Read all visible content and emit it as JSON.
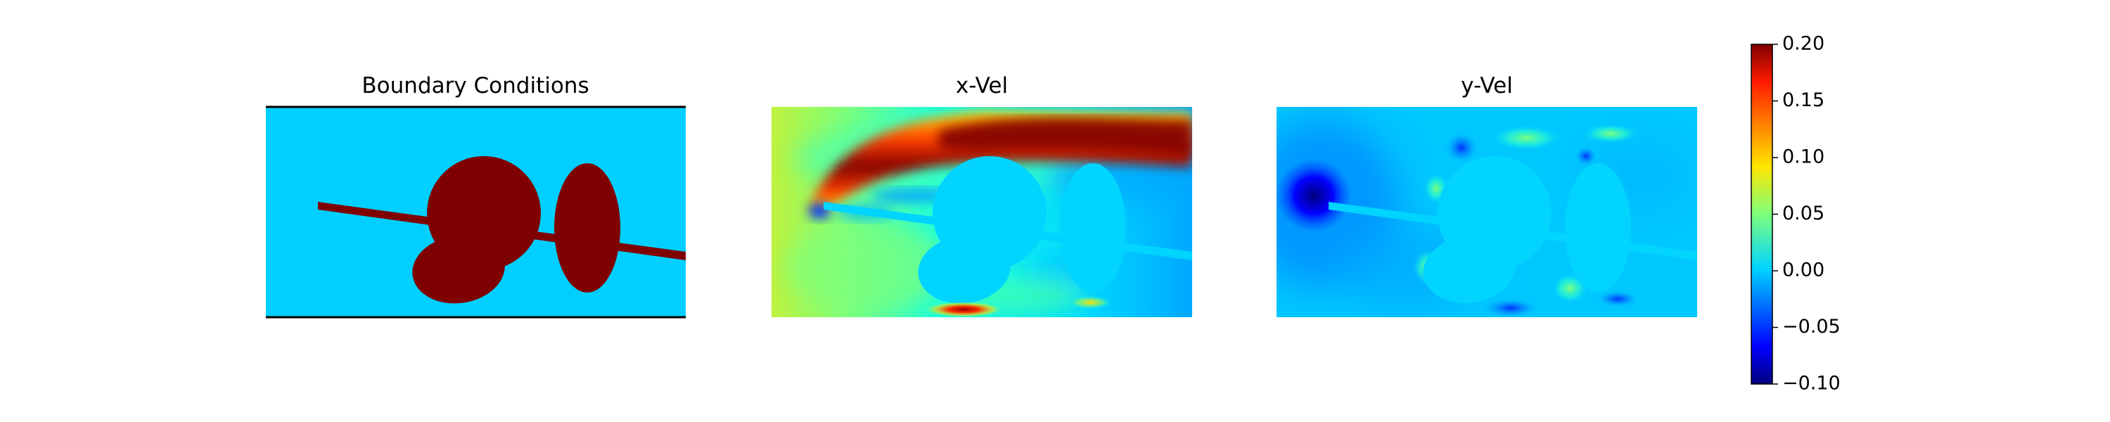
{
  "chart_data": [
    {
      "type": "heatmap",
      "title": "Boundary Conditions",
      "axes": "off",
      "colors": {
        "background": "#00cfff",
        "obstacle": "#7f0000",
        "wall": "#000000"
      }
    },
    {
      "type": "heatmap",
      "title": "x-Vel",
      "axes": "off",
      "colormap": "jet",
      "value_range": [
        -0.1,
        0.2
      ]
    },
    {
      "type": "heatmap",
      "title": "y-Vel",
      "axes": "off",
      "colormap": "jet",
      "value_range": [
        -0.1,
        0.2
      ]
    }
  ],
  "colorbar": {
    "colormap": "jet",
    "orientation": "vertical",
    "min": -0.1,
    "max": 0.2,
    "ticks": [
      {
        "value": 0.2,
        "label": "0.20"
      },
      {
        "value": 0.15,
        "label": "0.15"
      },
      {
        "value": 0.1,
        "label": "0.10"
      },
      {
        "value": 0.05,
        "label": "0.05"
      },
      {
        "value": 0.0,
        "label": "0.00"
      },
      {
        "value": -0.05,
        "label": "−0.05"
      },
      {
        "value": -0.1,
        "label": "−0.10"
      }
    ]
  }
}
